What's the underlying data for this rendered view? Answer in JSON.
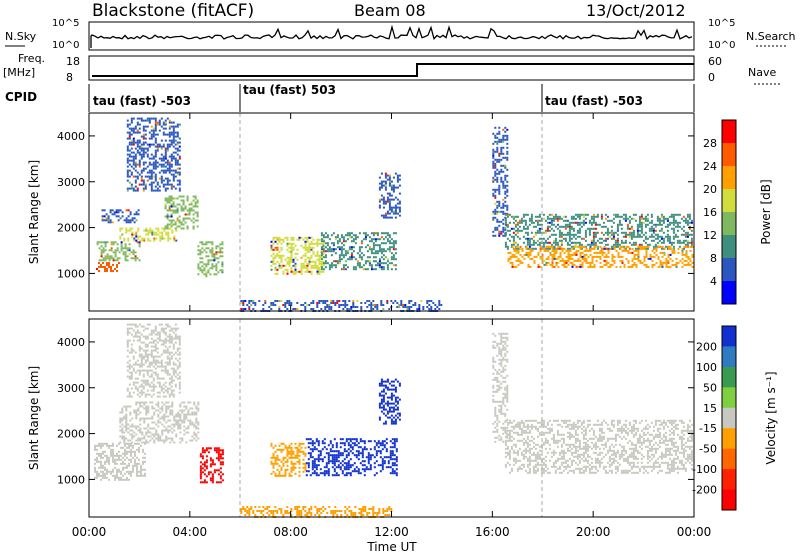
{
  "header": {
    "station": "Blackstone (fitACF)",
    "beam": "Beam 08",
    "date": "13/Oct/2012"
  },
  "strips": {
    "nsky_label": "N.Sky",
    "nsky_ticks": [
      "10^5",
      "10^0"
    ],
    "nsky_right_ticks": [
      "10^5",
      "10^0"
    ],
    "nsearch_label": "N.Search",
    "freq_label": "Freq.",
    "freq_unit": "[MHz]",
    "freq_ticks": [
      "18",
      "8"
    ],
    "nave_label": "Nave",
    "nave_ticks": [
      "60",
      "0"
    ],
    "cpid_label": "CPID",
    "cpid_segments": [
      {
        "label": "tau (fast) -503",
        "start": 0,
        "end": 6
      },
      {
        "label": "tau (fast) 503",
        "start": 6,
        "end": 18
      },
      {
        "label": "tau (fast) -503",
        "start": 18,
        "end": 24
      }
    ]
  },
  "chart_data": [
    {
      "type": "heatmap",
      "name": "power",
      "ylabel": "Slant Range [km]",
      "ylim": [
        180,
        4500
      ],
      "xlim": [
        0,
        24
      ],
      "yticks": [
        "1000",
        "2000",
        "3000",
        "4000"
      ],
      "colorbar": {
        "label": "Power [dB]",
        "ticks": [
          "28",
          "24",
          "20",
          "16",
          "12",
          "8",
          "4"
        ],
        "colors": [
          "#ff0000",
          "#ff5a00",
          "#ffa000",
          "#d2dc3c",
          "#7fb85f",
          "#3f8f7f",
          "#2b56c0",
          "#0000ff"
        ]
      },
      "echo_regions": [
        {
          "t0": 0.2,
          "t1": 1.2,
          "r0": 1050,
          "r1": 1250,
          "level": 28
        },
        {
          "t0": 0.3,
          "t1": 2.0,
          "r0": 1300,
          "r1": 1700,
          "level": 16
        },
        {
          "t0": 1.2,
          "t1": 3.5,
          "r0": 1700,
          "r1": 2000,
          "level": 20
        },
        {
          "t0": 3.0,
          "t1": 4.3,
          "r0": 2000,
          "r1": 2700,
          "level": 16
        },
        {
          "t0": 1.5,
          "t1": 3.6,
          "r0": 2800,
          "r1": 4400,
          "level": 8
        },
        {
          "t0": 0.5,
          "t1": 2.0,
          "r0": 2100,
          "r1": 2400,
          "level": 8
        },
        {
          "t0": 4.3,
          "t1": 5.3,
          "r0": 950,
          "r1": 1700,
          "level": 16
        },
        {
          "t0": 7.2,
          "t1": 9.3,
          "r0": 1000,
          "r1": 1800,
          "level": 20
        },
        {
          "t0": 9.2,
          "t1": 12.2,
          "r0": 1100,
          "r1": 1900,
          "level": 12
        },
        {
          "t0": 11.5,
          "t1": 12.3,
          "r0": 2200,
          "r1": 3200,
          "level": 8
        },
        {
          "t0": 16.0,
          "t1": 16.6,
          "r0": 1800,
          "r1": 4200,
          "level": 8
        },
        {
          "t0": 16.5,
          "t1": 23.9,
          "r0": 1550,
          "r1": 2300,
          "level": 12
        },
        {
          "t0": 16.6,
          "t1": 23.9,
          "r0": 1150,
          "r1": 1600,
          "level": 24
        },
        {
          "t0": 6.0,
          "t1": 14.0,
          "r0": 200,
          "r1": 420,
          "level": 8
        }
      ]
    },
    {
      "type": "heatmap",
      "name": "velocity",
      "ylabel": "Slant Range [km]",
      "ylim": [
        180,
        4500
      ],
      "xlim": [
        0,
        24
      ],
      "yticks": [
        "1000",
        "2000",
        "3000",
        "4000"
      ],
      "colorbar": {
        "label": "Velocity [m s⁻¹]",
        "ticks": [
          "200",
          "100",
          "50",
          "15",
          "-15",
          "-50",
          "-100",
          "-200"
        ],
        "colors": [
          "#1030d0",
          "#2f7ac0",
          "#3a9a50",
          "#7fd040",
          "#c8c8c0",
          "#ffa000",
          "#ff6600",
          "#ff2000",
          "#ff0000"
        ]
      },
      "echo_regions": [
        {
          "t0": 0.2,
          "t1": 2.2,
          "r0": 1000,
          "r1": 1800,
          "level": 0
        },
        {
          "t0": 1.2,
          "t1": 4.3,
          "r0": 1800,
          "r1": 2700,
          "level": 0
        },
        {
          "t0": 1.5,
          "t1": 3.6,
          "r0": 2800,
          "r1": 4400,
          "level": 0
        },
        {
          "t0": 4.4,
          "t1": 5.3,
          "r0": 950,
          "r1": 1700,
          "level": -200
        },
        {
          "t0": 7.2,
          "t1": 8.6,
          "r0": 1100,
          "r1": 1800,
          "level": -50
        },
        {
          "t0": 8.6,
          "t1": 12.2,
          "r0": 1100,
          "r1": 1900,
          "level": 150
        },
        {
          "t0": 11.5,
          "t1": 12.3,
          "r0": 2200,
          "r1": 3200,
          "level": 200
        },
        {
          "t0": 16.0,
          "t1": 16.6,
          "r0": 1800,
          "r1": 4200,
          "level": 0
        },
        {
          "t0": 16.5,
          "t1": 23.9,
          "r0": 1150,
          "r1": 2300,
          "level": 0
        },
        {
          "t0": 6.0,
          "t1": 12.0,
          "r0": 200,
          "r1": 420,
          "level": -50
        }
      ]
    }
  ],
  "x_axis": {
    "label": "Time UT",
    "ticks": [
      "00:00",
      "04:00",
      "08:00",
      "12:00",
      "16:00",
      "20:00",
      "00:00"
    ]
  }
}
